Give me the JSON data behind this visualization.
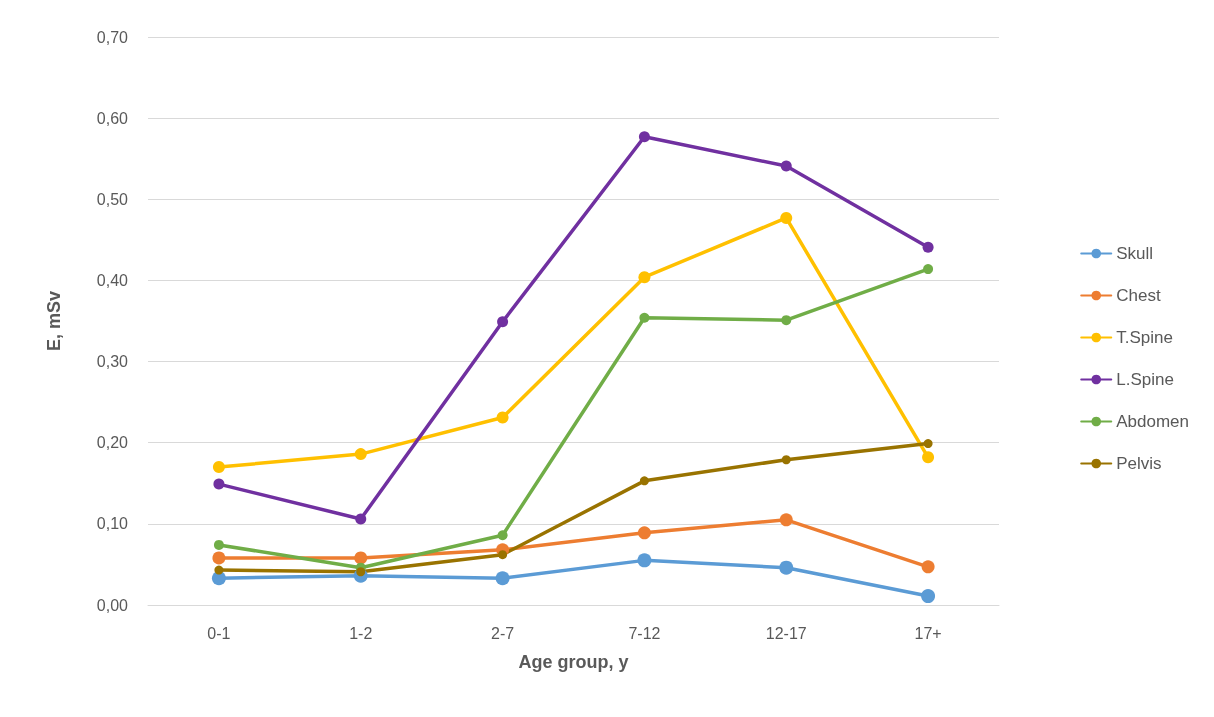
{
  "chart_data": {
    "type": "line",
    "xlabel": "Age group, y",
    "ylabel": "E, mSv",
    "categories": [
      "0-1",
      "1-2",
      "2-7",
      "7-12",
      "12-17",
      "17+"
    ],
    "series": [
      {
        "name": "Skull",
        "color": "#5b9bd5",
        "values": [
          0.033,
          0.036,
          0.033,
          0.055,
          0.046,
          0.011
        ]
      },
      {
        "name": "Chest",
        "color": "#ed7d31",
        "values": [
          0.058,
          0.058,
          0.068,
          0.089,
          0.105,
          0.047
        ]
      },
      {
        "name": "T.Spine",
        "color": "#ffc000",
        "values": [
          0.17,
          0.186,
          0.231,
          0.404,
          0.477,
          0.182
        ]
      },
      {
        "name": "L.Spine",
        "color": "#7030a0",
        "values": [
          0.149,
          0.106,
          0.349,
          0.577,
          0.541,
          0.441
        ]
      },
      {
        "name": "Abdomen",
        "color": "#70ad47",
        "values": [
          0.074,
          0.046,
          0.086,
          0.354,
          0.351,
          0.414
        ]
      },
      {
        "name": "Pelvis",
        "color": "#997300",
        "values": [
          0.043,
          0.041,
          0.062,
          0.153,
          0.179,
          0.199
        ]
      }
    ],
    "ylim": [
      0,
      0.7
    ],
    "yticks": [
      {
        "value": 0,
        "label": "0,00"
      },
      {
        "value": 0.1,
        "label": "0,10"
      },
      {
        "value": 0.2,
        "label": "0,20"
      },
      {
        "value": 0.3,
        "label": "0,30"
      },
      {
        "value": 0.4,
        "label": "0,40"
      },
      {
        "value": 0.5,
        "label": "0,50"
      },
      {
        "value": 0.6,
        "label": "0,60"
      },
      {
        "value": 0.7,
        "label": "0,70"
      }
    ],
    "grid": "y",
    "legend": "right",
    "marker": "circle",
    "line_style": "solid"
  }
}
